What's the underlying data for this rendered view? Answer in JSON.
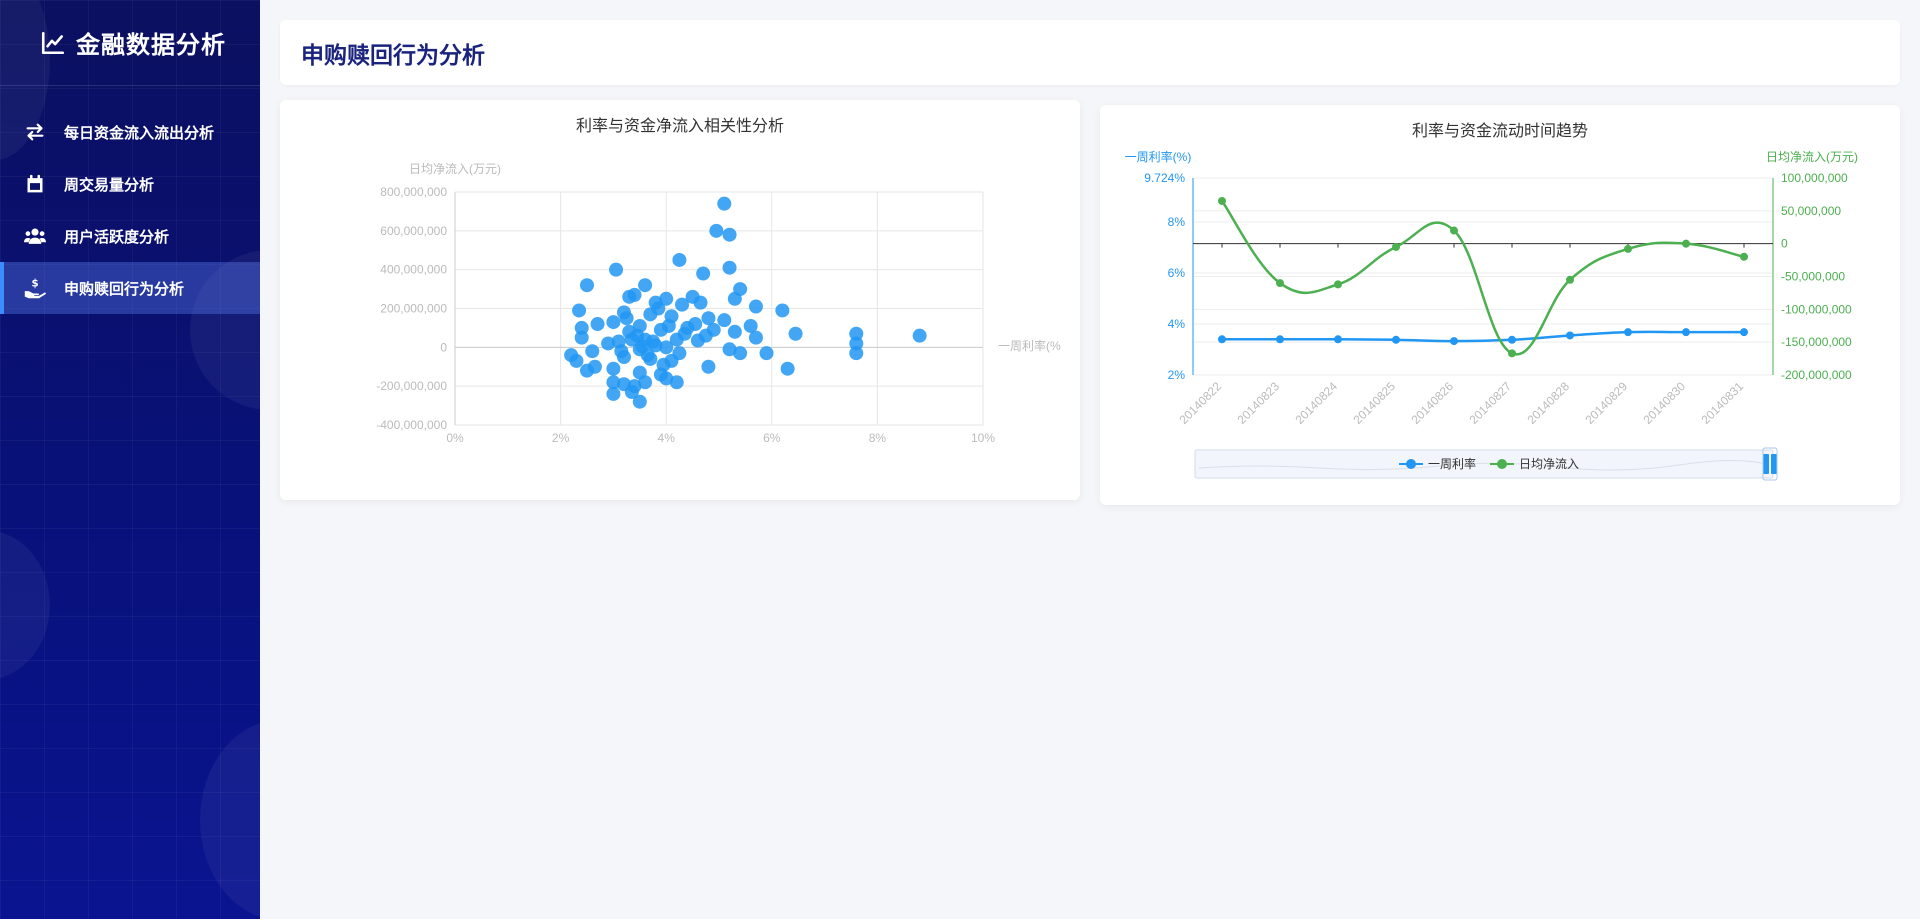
{
  "app": {
    "title": "金融数据分析"
  },
  "sidebar": {
    "items": [
      {
        "label": "每日资金流入流出分析",
        "icon": "swap-arrows-icon",
        "active": false
      },
      {
        "label": "周交易量分析",
        "icon": "calendar-icon",
        "active": false
      },
      {
        "label": "用户活跃度分析",
        "icon": "users-icon",
        "active": false
      },
      {
        "label": "申购赎回行为分析",
        "icon": "hand-money-icon",
        "active": true
      }
    ]
  },
  "page": {
    "title": "申购赎回行为分析"
  },
  "colors": {
    "blue": "#2196f3",
    "green": "#4caf50",
    "title_navy": "#1a237e",
    "sidebar": "#0b1060"
  },
  "chart_data": [
    {
      "type": "scatter",
      "title": "利率与资金净流入相关性分析",
      "xlabel": "一周利率(%",
      "ylabel": "日均净流入(万元)",
      "xlim": [
        0,
        10
      ],
      "ylim": [
        -400000000,
        800000000
      ],
      "x_ticks": [
        "0%",
        "2%",
        "4%",
        "6%",
        "8%",
        "10%"
      ],
      "y_ticks": [
        "800,000,000",
        "600,000,000",
        "400,000,000",
        "200,000,000",
        "0",
        "-200,000,000",
        "-400,000,000"
      ],
      "grid": true,
      "series": [
        {
          "points": [
            [
              5.1,
              740000000
            ],
            [
              4.95,
              600000000
            ],
            [
              5.2,
              580000000
            ],
            [
              4.25,
              450000000
            ],
            [
              5.2,
              410000000
            ],
            [
              3.05,
              400000000
            ],
            [
              4.7,
              380000000
            ],
            [
              2.5,
              320000000
            ],
            [
              3.6,
              320000000
            ],
            [
              5.4,
              300000000
            ],
            [
              3.4,
              270000000
            ],
            [
              3.3,
              260000000
            ],
            [
              4.5,
              260000000
            ],
            [
              5.3,
              250000000
            ],
            [
              4.0,
              250000000
            ],
            [
              3.8,
              230000000
            ],
            [
              4.3,
              220000000
            ],
            [
              5.7,
              210000000
            ],
            [
              6.2,
              190000000
            ],
            [
              2.35,
              190000000
            ],
            [
              3.2,
              180000000
            ],
            [
              3.7,
              170000000
            ],
            [
              4.1,
              160000000
            ],
            [
              4.8,
              150000000
            ],
            [
              5.1,
              140000000
            ],
            [
              3.0,
              130000000
            ],
            [
              2.7,
              120000000
            ],
            [
              5.6,
              110000000
            ],
            [
              3.5,
              110000000
            ],
            [
              4.4,
              100000000
            ],
            [
              2.4,
              100000000
            ],
            [
              4.9,
              90000000
            ],
            [
              3.9,
              90000000
            ],
            [
              3.3,
              80000000
            ],
            [
              5.3,
              80000000
            ],
            [
              6.45,
              70000000
            ],
            [
              7.6,
              70000000
            ],
            [
              8.8,
              60000000
            ],
            [
              5.7,
              50000000
            ],
            [
              2.4,
              50000000
            ],
            [
              3.6,
              40000000
            ],
            [
              4.2,
              40000000
            ],
            [
              4.6,
              35000000
            ],
            [
              3.1,
              30000000
            ],
            [
              7.6,
              20000000
            ],
            [
              2.9,
              20000000
            ],
            [
              3.8,
              10000000
            ],
            [
              4.0,
              0
            ],
            [
              3.5,
              -10000000
            ],
            [
              5.2,
              -10000000
            ],
            [
              2.6,
              -20000000
            ],
            [
              5.9,
              -30000000
            ],
            [
              5.4,
              -30000000
            ],
            [
              7.6,
              -30000000
            ],
            [
              2.2,
              -40000000
            ],
            [
              3.2,
              -50000000
            ],
            [
              3.7,
              -60000000
            ],
            [
              2.3,
              -70000000
            ],
            [
              4.1,
              -70000000
            ],
            [
              4.8,
              -100000000
            ],
            [
              6.3,
              -110000000
            ],
            [
              2.5,
              -120000000
            ],
            [
              2.65,
              -100000000
            ],
            [
              3.0,
              -110000000
            ],
            [
              3.5,
              -130000000
            ],
            [
              3.9,
              -140000000
            ],
            [
              3.0,
              -180000000
            ],
            [
              3.6,
              -180000000
            ],
            [
              4.2,
              -180000000
            ],
            [
              3.2,
              -190000000
            ],
            [
              3.4,
              -200000000
            ],
            [
              3.0,
              -240000000
            ],
            [
              3.35,
              -230000000
            ],
            [
              3.5,
              -280000000
            ],
            [
              4.0,
              -160000000
            ],
            [
              3.75,
              30000000
            ],
            [
              3.45,
              60000000
            ],
            [
              4.35,
              70000000
            ],
            [
              3.65,
              -40000000
            ],
            [
              3.95,
              -90000000
            ],
            [
              4.55,
              120000000
            ],
            [
              3.25,
              150000000
            ],
            [
              3.85,
              200000000
            ],
            [
              4.65,
              230000000
            ],
            [
              3.15,
              -20000000
            ],
            [
              4.05,
              110000000
            ],
            [
              3.55,
              5000000
            ],
            [
              4.25,
              -30000000
            ],
            [
              3.35,
              40000000
            ],
            [
              4.75,
              60000000
            ]
          ]
        }
      ]
    },
    {
      "type": "line",
      "title": "利率与资金流动时间趋势",
      "categories": [
        "20140822",
        "20140823",
        "20140824",
        "20140825",
        "20140826",
        "20140827",
        "20140828",
        "20140829",
        "20140830",
        "20140831"
      ],
      "y_left": {
        "label": "一周利率(%)",
        "ticks": [
          "9.724%",
          "8%",
          "6%",
          "4%",
          "2%"
        ],
        "min": 2,
        "max": 9.724
      },
      "y_right": {
        "label": "日均净流入(万元)",
        "ticks": [
          "100,000,000",
          "50,000,000",
          "0",
          "-50,000,000",
          "-100,000,000",
          "-150,000,000",
          "-200,000,000"
        ],
        "min": -200000000,
        "max": 100000000
      },
      "series": [
        {
          "name": "一周利率",
          "axis": "left",
          "color": "#2196f3",
          "values": [
            3.4,
            3.4,
            3.4,
            3.38,
            3.33,
            3.38,
            3.55,
            3.68,
            3.68,
            3.68
          ]
        },
        {
          "name": "日均净流入",
          "axis": "right",
          "color": "#4caf50",
          "values": [
            65000000,
            -60000000,
            -62000000,
            -5000000,
            20000000,
            -167000000,
            -55000000,
            -8000000,
            0,
            -20000000
          ]
        }
      ],
      "legend": "bottom-center",
      "datazoom": true
    }
  ]
}
